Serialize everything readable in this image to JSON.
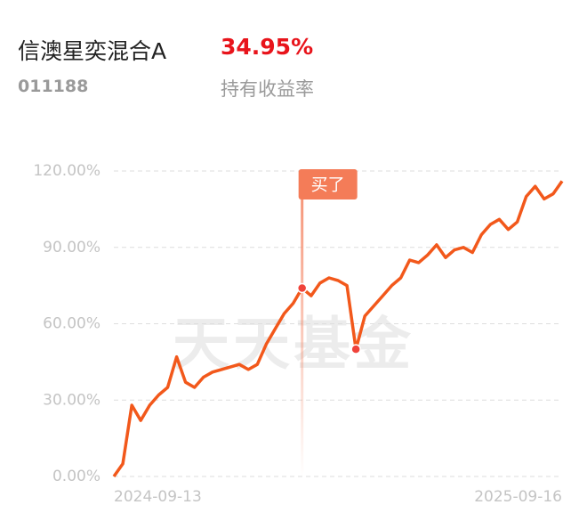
{
  "header": {
    "title": "信澳星奕混合A",
    "return": "34.95%",
    "code": "011188",
    "return_label": "持有收益率"
  },
  "chart_data": {
    "type": "line",
    "watermark": "天天基金",
    "categories": [
      "2024-09-13",
      null,
      null,
      null,
      null,
      null,
      null,
      null,
      null,
      null,
      null,
      null,
      null,
      null,
      null,
      null,
      null,
      null,
      null,
      null,
      null,
      null,
      null,
      null,
      null,
      null,
      null,
      null,
      null,
      null,
      null,
      null,
      null,
      null,
      null,
      null,
      null,
      null,
      null,
      null,
      null,
      null,
      null,
      null,
      null,
      null,
      null,
      null,
      null,
      null,
      "2025-09-16"
    ],
    "series": [
      {
        "color": "#f2581b",
        "values": [
          0,
          5,
          28,
          22,
          28,
          32,
          35,
          47,
          37,
          35,
          39,
          41,
          42,
          43,
          44,
          42,
          44,
          52,
          58,
          64,
          68,
          74,
          71,
          76,
          78,
          77,
          75,
          50,
          63,
          67,
          71,
          75,
          78,
          85,
          84,
          87,
          91,
          86,
          89,
          90,
          88,
          95,
          99,
          101,
          97,
          100,
          110,
          114,
          109,
          111,
          116
        ]
      }
    ],
    "annotation": {
      "text": "买了",
      "at": 21
    },
    "highlight": 27,
    "ylim": [
      0,
      120
    ],
    "yticks": [
      {
        "value": 0,
        "label": "0.00%"
      },
      {
        "value": 30,
        "label": "30.00%"
      },
      {
        "value": 60,
        "label": "60.00%"
      },
      {
        "value": 90,
        "label": "90.00%"
      },
      {
        "value": 120,
        "label": "120.00%"
      }
    ],
    "grid": true
  }
}
